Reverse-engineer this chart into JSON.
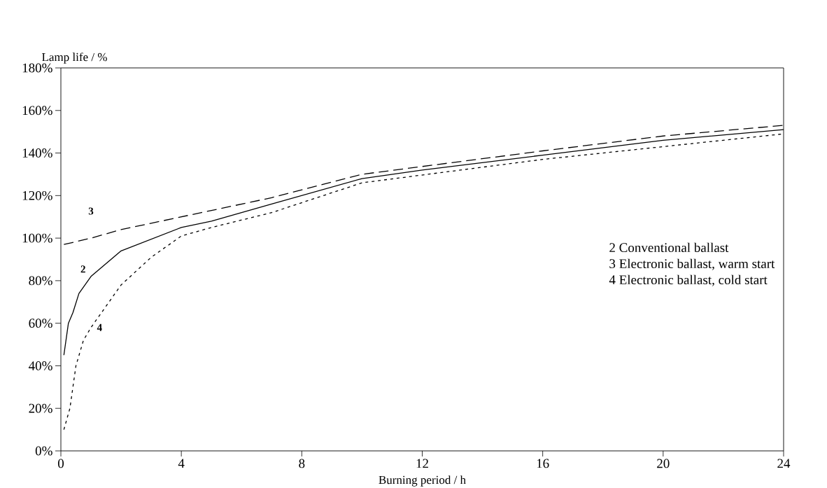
{
  "chart_data": {
    "type": "line",
    "xlabel": "Burning period / h",
    "ylabel": "Lamp life / %",
    "xlim": [
      0,
      24
    ],
    "xticks": [
      0,
      4,
      8,
      12,
      16,
      20,
      24
    ],
    "ylim": [
      0,
      180
    ],
    "yticks": [
      {
        "value": 0,
        "label": "0%"
      },
      {
        "value": 20,
        "label": "20%"
      },
      {
        "value": 40,
        "label": "40%"
      },
      {
        "value": 60,
        "label": "60%"
      },
      {
        "value": 80,
        "label": "80%"
      },
      {
        "value": 100,
        "label": "100%"
      },
      {
        "value": 120,
        "label": "120%"
      },
      {
        "value": 140,
        "label": "140%"
      },
      {
        "value": 160,
        "label": "160%"
      },
      {
        "value": 180,
        "label": "180%"
      }
    ],
    "grid": false,
    "marker": "none",
    "series": [
      {
        "name": "2",
        "color": "#000000",
        "line_style": "solid",
        "x": [
          0.1,
          0.25,
          0.4,
          0.6,
          1,
          2,
          4,
          5,
          7,
          10,
          12,
          16,
          20,
          24
        ],
        "values": [
          45,
          60,
          65,
          74,
          82,
          94,
          105,
          108,
          116,
          128,
          132,
          139,
          146,
          151
        ]
      },
      {
        "name": "3",
        "color": "#000000",
        "line_style": "dashed",
        "x": [
          0.1,
          1,
          2,
          3,
          4,
          5,
          7,
          10,
          16,
          20,
          24
        ],
        "values": [
          97,
          100,
          104,
          107,
          110,
          113,
          119,
          130,
          141,
          148,
          153
        ]
      },
      {
        "name": "4",
        "color": "#000000",
        "line_style": "dotted",
        "x": [
          0.1,
          0.3,
          0.5,
          0.75,
          1,
          2,
          3,
          4,
          5,
          7,
          10,
          16,
          20,
          24
        ],
        "values": [
          10,
          20,
          40,
          52,
          58,
          78,
          91,
          101,
          105,
          112,
          126,
          137,
          143,
          149
        ]
      }
    ],
    "annotations": [
      "2 Conventional ballast",
      "3 Electronic ballast, warm start",
      "4 Electronic ballast, cold start"
    ]
  }
}
